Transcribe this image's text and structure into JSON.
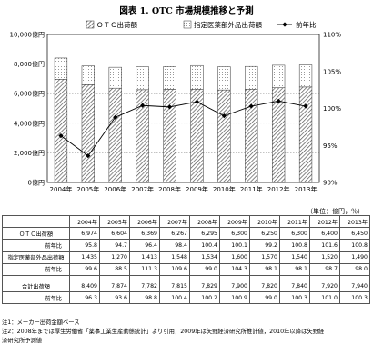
{
  "chart_data": {
    "type": "bar",
    "title": "図表 1. OTC 市場規模推移と予測",
    "categories": [
      "2004年",
      "2005年",
      "2006年",
      "2007年",
      "2008年",
      "2009年",
      "2010年",
      "2011年",
      "2012年",
      "2013年"
    ],
    "series": [
      {
        "name": "ＯＴＣ出荷額",
        "kind": "bar-stack",
        "values": [
          6974,
          6604,
          6369,
          6267,
          6295,
          6300,
          6250,
          6300,
          6400,
          6450
        ]
      },
      {
        "name": "指定医薬部外品出荷額",
        "kind": "bar-stack",
        "values": [
          1435,
          1270,
          1413,
          1548,
          1534,
          1600,
          1570,
          1540,
          1520,
          1490
        ]
      },
      {
        "name": "前年比",
        "kind": "line",
        "axis": "right",
        "values": [
          96.3,
          93.6,
          98.8,
          100.4,
          100.2,
          100.9,
          99.0,
          100.3,
          101.0,
          100.3
        ]
      }
    ],
    "y_left": {
      "ticks": [
        "0億円",
        "2,000億円",
        "4,000億円",
        "6,000億円",
        "8,000億円",
        "10,000億円"
      ],
      "range": [
        0,
        10000
      ]
    },
    "y_right": {
      "ticks": [
        "90%",
        "95%",
        "100%",
        "105%",
        "110%"
      ],
      "range": [
        90,
        110
      ]
    }
  },
  "table": {
    "units": "（単位：億円，％）",
    "years": [
      "2004年",
      "2005年",
      "2006年",
      "2007年",
      "2008年",
      "2009年",
      "2010年",
      "2011年",
      "2012年",
      "2013年"
    ],
    "rows": [
      {
        "label": "ＯＴＣ出荷額",
        "sub": false,
        "values": [
          "6,974",
          "6,604",
          "6,369",
          "6,267",
          "6,295",
          "6,300",
          "6,250",
          "6,300",
          "6,400",
          "6,450"
        ]
      },
      {
        "label": "前年比",
        "sub": true,
        "values": [
          "95.8",
          "94.7",
          "96.4",
          "98.4",
          "100.4",
          "100.1",
          "99.2",
          "100.8",
          "101.6",
          "100.8"
        ]
      },
      {
        "label": "指定医薬部外品出荷額",
        "sub": false,
        "values": [
          "1,435",
          "1,270",
          "1,413",
          "1,548",
          "1,534",
          "1,600",
          "1,570",
          "1,540",
          "1,520",
          "1,490"
        ]
      },
      {
        "label": "前年比",
        "sub": true,
        "values": [
          "99.6",
          "88.5",
          "111.3",
          "109.6",
          "99.0",
          "104.3",
          "98.1",
          "98.1",
          "98.7",
          "98.0"
        ]
      },
      {
        "gap": true
      },
      {
        "label": "合計出荷額",
        "sub": false,
        "values": [
          "8,409",
          "7,874",
          "7,782",
          "7,815",
          "7,829",
          "7,900",
          "7,820",
          "7,840",
          "7,920",
          "7,940"
        ]
      },
      {
        "label": "前年比",
        "sub": true,
        "values": [
          "96.3",
          "93.6",
          "98.8",
          "100.4",
          "100.2",
          "100.9",
          "99.0",
          "100.3",
          "101.0",
          "100.3"
        ]
      }
    ]
  },
  "notes": [
    "注1：メーカー出荷金額ベース",
    "注2：2008年までは厚生労働省「薬事工業生産動態統計」より引用，2009年は矢野経済研究所推計値，2010年以降は矢野経",
    "済研究所予測値"
  ]
}
